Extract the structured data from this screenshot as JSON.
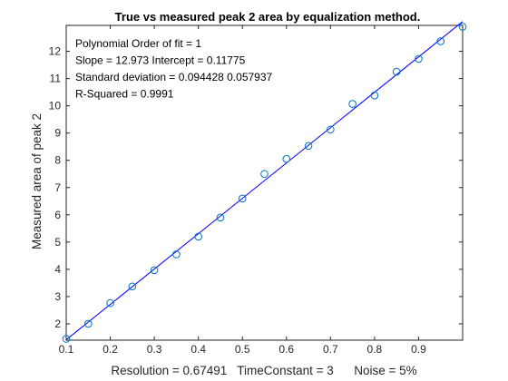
{
  "chart_data": {
    "type": "scatter",
    "title": "True vs measured peak 2 area by equalization method.",
    "xlabel": "Resolution = 0.67491   TimeConstant = 3      Noise = 5%",
    "ylabel": "Measured area of peak 2",
    "xlim": [
      0.1,
      1.0
    ],
    "ylim": [
      1.4,
      12.95
    ],
    "xticks": [
      "0.1",
      "0.2",
      "0.3",
      "0.4",
      "0.5",
      "0.6",
      "0.7",
      "0.8",
      "0.9"
    ],
    "yticks": [
      "2",
      "3",
      "4",
      "5",
      "6",
      "7",
      "8",
      "9",
      "10",
      "11",
      "12"
    ],
    "grid": false,
    "series": [
      {
        "marker": "circle",
        "color": "#0072BD",
        "x": [
          0.1,
          0.15,
          0.2,
          0.25,
          0.3,
          0.35,
          0.4,
          0.45,
          0.5,
          0.55,
          0.6,
          0.65,
          0.7,
          0.75,
          0.8,
          0.85,
          0.9,
          0.95,
          1.0
        ],
        "y": [
          1.45,
          2.0,
          2.76,
          3.37,
          3.97,
          4.55,
          5.2,
          5.9,
          6.6,
          7.5,
          8.05,
          8.53,
          9.13,
          10.07,
          10.38,
          11.25,
          11.72,
          12.37,
          12.9
        ]
      },
      {
        "line": "fit",
        "color": "#0000FF",
        "slope": 12.973,
        "intercept": 0.11775,
        "x_range": [
          0.1,
          1.0
        ]
      }
    ],
    "annotations": [
      "Polynomial Order of fit = 1",
      "Slope = 12.973    Intercept = 0.11775",
      "Standard deviation = 0.094428      0.057937",
      "R-Squared = 0.9991"
    ]
  },
  "colors": {
    "marker": "#0072BD",
    "fit_line": "#0000FF",
    "axes": "#262626"
  }
}
